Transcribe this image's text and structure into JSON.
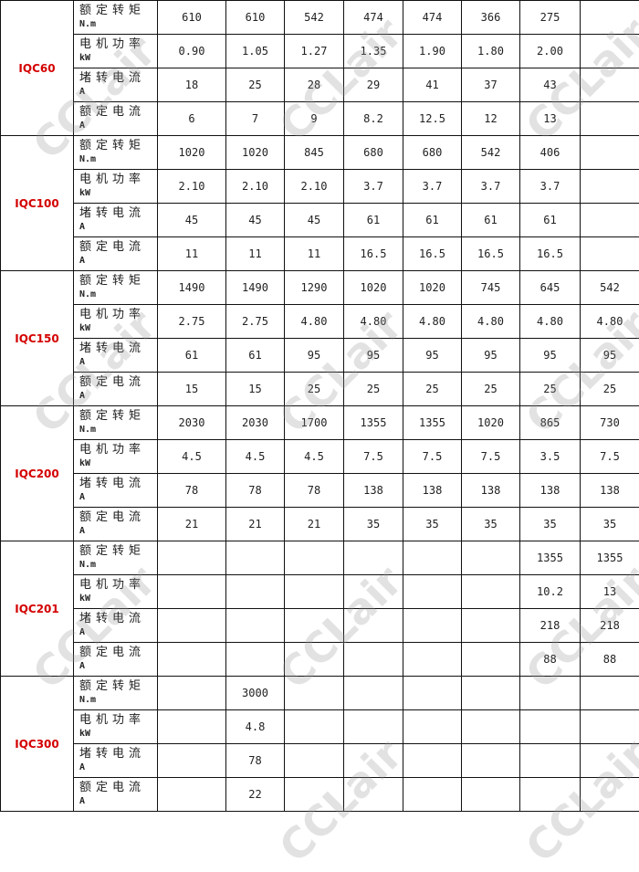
{
  "watermark": "CCLair",
  "colors": {
    "model_label": "#d40000",
    "border": "#111111"
  },
  "row_labels": [
    {
      "name": "额定转矩",
      "unit": "N.m"
    },
    {
      "name": "电机功率",
      "unit": "kW"
    },
    {
      "name": "堵转电流",
      "unit": "A"
    },
    {
      "name": "额定电流",
      "unit": "A"
    }
  ],
  "models": [
    {
      "model": "IQC60",
      "rows": [
        [
          "610",
          "610",
          "542",
          "474",
          "474",
          "366",
          "275",
          ""
        ],
        [
          "0.90",
          "1.05",
          "1.27",
          "1.35",
          "1.90",
          "1.80",
          "2.00",
          ""
        ],
        [
          "18",
          "25",
          "28",
          "29",
          "41",
          "37",
          "43",
          ""
        ],
        [
          "6",
          "7",
          "9",
          "8.2",
          "12.5",
          "12",
          "13",
          ""
        ]
      ]
    },
    {
      "model": "IQC100",
      "rows": [
        [
          "1020",
          "1020",
          "845",
          "680",
          "680",
          "542",
          "406",
          ""
        ],
        [
          "2.10",
          "2.10",
          "2.10",
          "3.7",
          "3.7",
          "3.7",
          "3.7",
          ""
        ],
        [
          "45",
          "45",
          "45",
          "61",
          "61",
          "61",
          "61",
          ""
        ],
        [
          "11",
          "11",
          "11",
          "16.5",
          "16.5",
          "16.5",
          "16.5",
          ""
        ]
      ]
    },
    {
      "model": "IQC150",
      "rows": [
        [
          "1490",
          "1490",
          "1290",
          "1020",
          "1020",
          "745",
          "645",
          "542"
        ],
        [
          "2.75",
          "2.75",
          "4.80",
          "4.80",
          "4.80",
          "4.80",
          "4.80",
          "4.80"
        ],
        [
          "61",
          "61",
          "95",
          "95",
          "95",
          "95",
          "95",
          "95"
        ],
        [
          "15",
          "15",
          "25",
          "25",
          "25",
          "25",
          "25",
          "25"
        ]
      ]
    },
    {
      "model": "IQC200",
      "rows": [
        [
          "2030",
          "2030",
          "1700",
          "1355",
          "1355",
          "1020",
          "865",
          "730"
        ],
        [
          "4.5",
          "4.5",
          "4.5",
          "7.5",
          "7.5",
          "7.5",
          "3.5",
          "7.5"
        ],
        [
          "78",
          "78",
          "78",
          "138",
          "138",
          "138",
          "138",
          "138"
        ],
        [
          "21",
          "21",
          "21",
          "35",
          "35",
          "35",
          "35",
          "35"
        ]
      ]
    },
    {
      "model": "IQC201",
      "rows": [
        [
          "",
          "",
          "",
          "",
          "",
          "",
          "1355",
          "1355"
        ],
        [
          "",
          "",
          "",
          "",
          "",
          "",
          "10.2",
          "13"
        ],
        [
          "",
          "",
          "",
          "",
          "",
          "",
          "218",
          "218"
        ],
        [
          "",
          "",
          "",
          "",
          "",
          "",
          "88",
          "88"
        ]
      ]
    },
    {
      "model": "IQC300",
      "rows": [
        [
          "",
          "3000",
          "",
          "",
          "",
          "",
          "",
          ""
        ],
        [
          "",
          "4.8",
          "",
          "",
          "",
          "",
          "",
          ""
        ],
        [
          "",
          "78",
          "",
          "",
          "",
          "",
          "",
          ""
        ],
        [
          "",
          "22",
          "",
          "",
          "",
          "",
          "",
          ""
        ]
      ]
    }
  ]
}
